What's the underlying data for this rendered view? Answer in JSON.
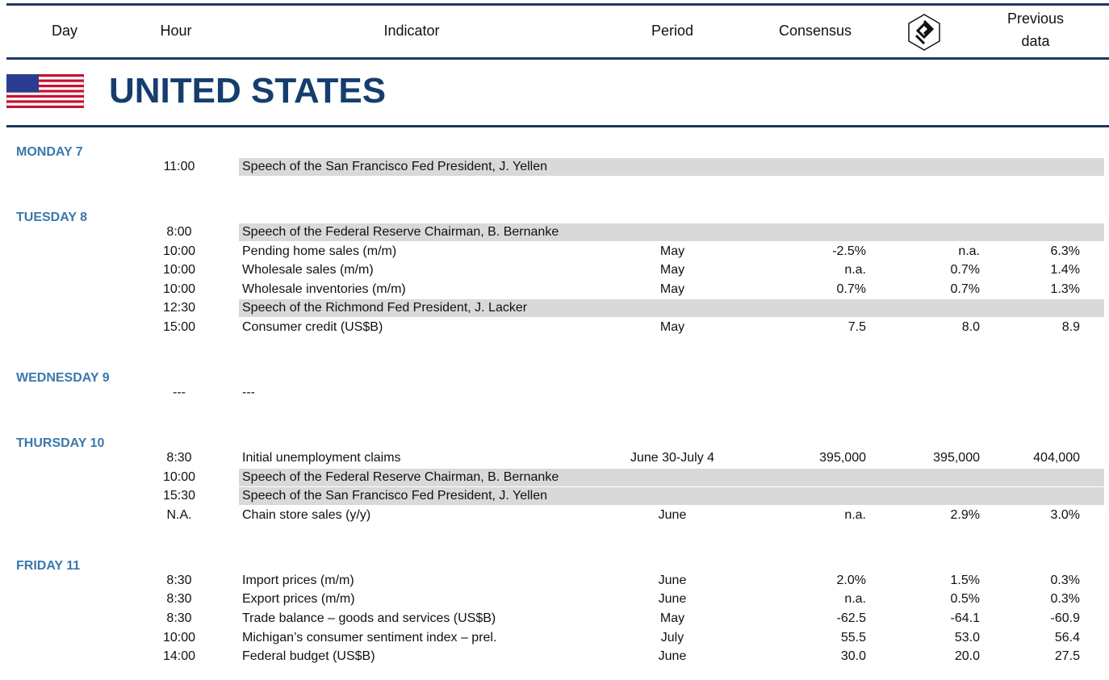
{
  "header": {
    "day": "Day",
    "hour": "Hour",
    "indicator": "Indicator",
    "period": "Period",
    "consensus": "Consensus",
    "previous": [
      "Previous",
      "data"
    ]
  },
  "country": "UNITED STATES",
  "days": [
    {
      "label": "MONDAY 7",
      "rows": [
        {
          "hour": "11:00",
          "indicator": "Speech of the San Francisco Fed President, J. Yellen",
          "highlight": true
        }
      ]
    },
    {
      "label": "TUESDAY 8",
      "rows": [
        {
          "hour": "8:00",
          "indicator": "Speech of the Federal Reserve Chairman, B. Bernanke",
          "highlight": true
        },
        {
          "hour": "10:00",
          "indicator": "Pending home sales (m/m)",
          "period": "May",
          "consensus": "-2.5%",
          "bank": "n.a.",
          "previous": "6.3%"
        },
        {
          "hour": "10:00",
          "indicator": "Wholesale sales (m/m)",
          "period": "May",
          "consensus": "n.a.",
          "bank": "0.7%",
          "previous": "1.4%"
        },
        {
          "hour": "10:00",
          "indicator": "Wholesale inventories (m/m)",
          "period": "May",
          "consensus": "0.7%",
          "bank": "0.7%",
          "previous": "1.3%"
        },
        {
          "hour": "12:30",
          "indicator": "Speech of the Richmond Fed President, J. Lacker",
          "highlight": true
        },
        {
          "hour": "15:00",
          "indicator": "Consumer credit (US$B)",
          "period": "May",
          "consensus": "7.5",
          "bank": "8.0",
          "previous": "8.9"
        }
      ]
    },
    {
      "label": "WEDNESDAY 9",
      "rows": [
        {
          "hour": "---",
          "indicator": "---"
        }
      ]
    },
    {
      "label": "THURSDAY 10",
      "rows": [
        {
          "hour": "8:30",
          "indicator": "Initial unemployment claims",
          "period": "June 30-July 4",
          "consensus": "395,000",
          "bank": "395,000",
          "previous": "404,000"
        },
        {
          "hour": "10:00",
          "indicator": "Speech of the Federal Reserve Chairman, B. Bernanke",
          "highlight": true
        },
        {
          "hour": "15:30",
          "indicator": "Speech of the San Francisco Fed President, J. Yellen",
          "highlight": true
        },
        {
          "hour": "N.A.",
          "indicator": "Chain store sales (y/y)",
          "period": "June",
          "consensus": "n.a.",
          "bank": "2.9%",
          "previous": "3.0%"
        }
      ]
    },
    {
      "label": "FRIDAY 11",
      "rows": [
        {
          "hour": "8:30",
          "indicator": "Import prices (m/m)",
          "period": "June",
          "consensus": "2.0%",
          "bank": "1.5%",
          "previous": "0.3%"
        },
        {
          "hour": "8:30",
          "indicator": "Export prices (m/m)",
          "period": "June",
          "consensus": "n.a.",
          "bank": "0.5%",
          "previous": "0.3%"
        },
        {
          "hour": "8:30",
          "indicator": "Trade balance – goods and services (US$B)",
          "period": "May",
          "consensus": "-62.5",
          "bank": "-64.1",
          "previous": "-60.9"
        },
        {
          "hour": "10:00",
          "indicator": "Michigan’s consumer sentiment index – prel.",
          "period": "July",
          "consensus": "55.5",
          "bank": "53.0",
          "previous": "56.4"
        },
        {
          "hour": "14:00",
          "indicator": "Federal budget (US$B)",
          "period": "June",
          "consensus": "30.0",
          "bank": "20.0",
          "previous": "27.5"
        }
      ]
    }
  ]
}
